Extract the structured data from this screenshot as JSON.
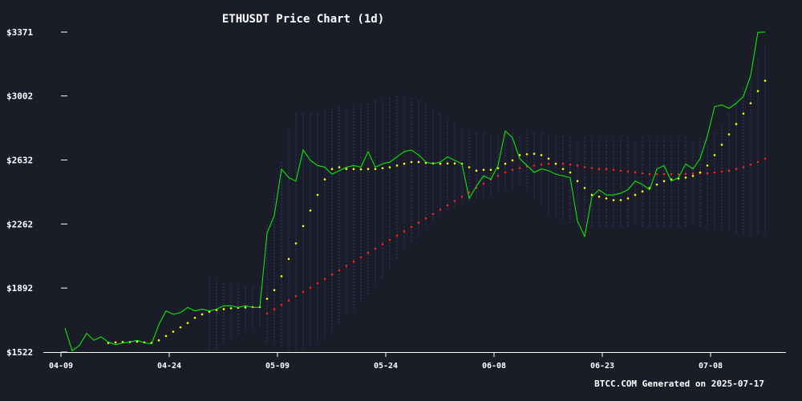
{
  "chart_data": {
    "type": "line",
    "title": "ETHUSDT Price Chart (1d)",
    "footer": "BTCC.COM Generated on 2025-07-17",
    "y_ticks": [
      "$3371",
      "$3002",
      "$2632",
      "$2262",
      "$1892",
      "$1522"
    ],
    "x_ticks": [
      "04-09",
      "04-24",
      "05-09",
      "05-24",
      "06-08",
      "06-23",
      "07-08"
    ],
    "ylim": [
      1522,
      3371
    ],
    "x_start": "2025-04-08",
    "grid": false,
    "colors": {
      "background": "#1a1d27",
      "price": "#00ff00",
      "ma_short": "#ffff00",
      "ma_long": "#ff2020",
      "band": "#3a3aa8",
      "text": "#ffffff"
    },
    "series": [
      {
        "name": "Price",
        "values": [
          1660,
          1530,
          1560,
          1630,
          1590,
          1610,
          1580,
          1565,
          1575,
          1580,
          1590,
          1575,
          1570,
          1680,
          1760,
          1740,
          1750,
          1780,
          1760,
          1770,
          1760,
          1770,
          1790,
          1790,
          1780,
          1790,
          1780,
          1780,
          2210,
          2310,
          2580,
          2530,
          2510,
          2690,
          2630,
          2600,
          2590,
          2550,
          2570,
          2590,
          2600,
          2590,
          2680,
          2590,
          2610,
          2620,
          2650,
          2680,
          2690,
          2660,
          2620,
          2610,
          2620,
          2650,
          2630,
          2610,
          2410,
          2480,
          2540,
          2520,
          2600,
          2800,
          2760,
          2640,
          2600,
          2560,
          2580,
          2570,
          2550,
          2540,
          2530,
          2280,
          2190,
          2420,
          2460,
          2430,
          2430,
          2440,
          2460,
          2510,
          2490,
          2460,
          2580,
          2600,
          2510,
          2530,
          2610,
          2580,
          2640,
          2770,
          2940,
          2950,
          2930,
          2960,
          3000,
          3120,
          3370,
          3371
        ]
      },
      {
        "name": "MA short",
        "values": [
          null,
          null,
          null,
          null,
          null,
          null,
          1575,
          1578,
          1580,
          1580,
          1582,
          1578,
          1576,
          1590,
          1615,
          1640,
          1665,
          1690,
          1720,
          1740,
          1755,
          1765,
          1770,
          1775,
          1778,
          1780,
          1782,
          1782,
          1830,
          1880,
          1960,
          2060,
          2150,
          2250,
          2340,
          2430,
          2520,
          2580,
          2590,
          2580,
          2580,
          2578,
          2580,
          2580,
          2585,
          2590,
          2600,
          2610,
          2620,
          2620,
          2615,
          2612,
          2610,
          2612,
          2612,
          2610,
          2590,
          2570,
          2575,
          2575,
          2585,
          2610,
          2630,
          2660,
          2665,
          2668,
          2660,
          2640,
          2610,
          2580,
          2560,
          2510,
          2470,
          2430,
          2420,
          2410,
          2400,
          2400,
          2410,
          2430,
          2450,
          2470,
          2490,
          2510,
          2520,
          2525,
          2530,
          2540,
          2560,
          2600,
          2660,
          2720,
          2780,
          2840,
          2900,
          2960,
          3030,
          3090
        ]
      },
      {
        "name": "MA long",
        "values": [
          null,
          null,
          null,
          null,
          null,
          null,
          null,
          null,
          null,
          null,
          null,
          null,
          null,
          null,
          null,
          null,
          null,
          null,
          null,
          null,
          null,
          null,
          null,
          null,
          null,
          null,
          null,
          null,
          1745,
          1770,
          1795,
          1820,
          1845,
          1870,
          1895,
          1920,
          1945,
          1970,
          1995,
          2020,
          2045,
          2070,
          2095,
          2120,
          2145,
          2170,
          2195,
          2220,
          2245,
          2270,
          2295,
          2320,
          2345,
          2370,
          2395,
          2420,
          2445,
          2470,
          2495,
          2520,
          2540,
          2560,
          2575,
          2585,
          2595,
          2600,
          2605,
          2610,
          2610,
          2610,
          2605,
          2600,
          2590,
          2585,
          2580,
          2580,
          2575,
          2570,
          2565,
          2560,
          2555,
          2550,
          2550,
          2550,
          2550,
          2550,
          2552,
          2555,
          2555,
          2555,
          2560,
          2565,
          2570,
          2580,
          2590,
          2605,
          2620,
          2640
        ]
      },
      {
        "name": "Band upper",
        "values": [
          null,
          null,
          null,
          null,
          null,
          null,
          null,
          null,
          null,
          null,
          null,
          null,
          null,
          null,
          null,
          null,
          null,
          null,
          null,
          null,
          1950,
          1940,
          1920,
          1910,
          1910,
          1900,
          1900,
          1900,
          2260,
          2450,
          2620,
          2800,
          2900,
          2900,
          2900,
          2900,
          2920,
          2930,
          2940,
          2940,
          2950,
          2950,
          2960,
          2970,
          2980,
          2990,
          3000,
          3010,
          2990,
          2970,
          2950,
          2920,
          2900,
          2870,
          2850,
          2820,
          2800,
          2790,
          2790,
          2780,
          2780,
          2790,
          2790,
          2790,
          2800,
          2790,
          2790,
          2780,
          2780,
          2770,
          2760,
          2760,
          2760,
          2760,
          2760,
          2760,
          2760,
          2760,
          2760,
          2760,
          2760,
          2760,
          2760,
          2760,
          2760,
          2760,
          2760,
          2760,
          2760,
          2770,
          2790,
          2830,
          2900,
          2980,
          3050,
          3130,
          3220,
          3300
        ]
      },
      {
        "name": "Band lower",
        "values": [
          null,
          null,
          null,
          null,
          null,
          null,
          null,
          null,
          null,
          null,
          null,
          null,
          null,
          null,
          null,
          null,
          null,
          null,
          null,
          null,
          1530,
          1540,
          1570,
          1600,
          1620,
          1640,
          1650,
          1660,
          1580,
          1560,
          1540,
          1530,
          1530,
          1530,
          1540,
          1560,
          1600,
          1640,
          1680,
          1720,
          1760,
          1800,
          1850,
          1900,
          1950,
          2000,
          2060,
          2110,
          2160,
          2200,
          2240,
          2280,
          2310,
          2340,
          2360,
          2380,
          2390,
          2400,
          2410,
          2420,
          2440,
          2460,
          2460,
          2460,
          2450,
          2400,
          2360,
          2310,
          2290,
          2280,
          2260,
          2250,
          2250,
          2240,
          2240,
          2240,
          2240,
          2240,
          2240,
          2240,
          2240,
          2240,
          2240,
          2240,
          2240,
          2240,
          2240,
          2240,
          2240,
          2240,
          2230,
          2230,
          2220,
          2210,
          2200,
          2200,
          2200,
          2200
        ]
      }
    ]
  }
}
